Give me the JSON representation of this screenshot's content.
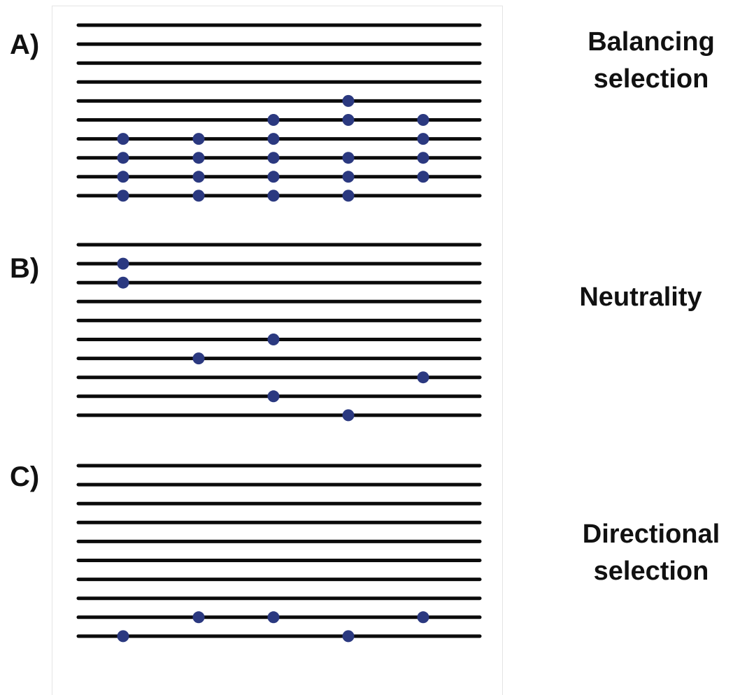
{
  "colors": {
    "line": "#0b0b0b",
    "dot": "#2b3980",
    "text": "#111111"
  },
  "panels": [
    {
      "id": "A",
      "letter": "A)",
      "title_lines": [
        "Balancing",
        "selection"
      ],
      "row_count": 10,
      "variant_columns": 5,
      "dots": [
        {
          "row": 5,
          "col": 4
        },
        {
          "row": 6,
          "col": 3
        },
        {
          "row": 6,
          "col": 4
        },
        {
          "row": 6,
          "col": 5
        },
        {
          "row": 7,
          "col": 1
        },
        {
          "row": 7,
          "col": 2
        },
        {
          "row": 7,
          "col": 3
        },
        {
          "row": 7,
          "col": 5
        },
        {
          "row": 8,
          "col": 1
        },
        {
          "row": 8,
          "col": 2
        },
        {
          "row": 8,
          "col": 3
        },
        {
          "row": 8,
          "col": 4
        },
        {
          "row": 8,
          "col": 5
        },
        {
          "row": 9,
          "col": 1
        },
        {
          "row": 9,
          "col": 2
        },
        {
          "row": 9,
          "col": 3
        },
        {
          "row": 9,
          "col": 4
        },
        {
          "row": 9,
          "col": 5
        },
        {
          "row": 10,
          "col": 1
        },
        {
          "row": 10,
          "col": 2
        },
        {
          "row": 10,
          "col": 3
        },
        {
          "row": 10,
          "col": 4
        }
      ]
    },
    {
      "id": "B",
      "letter": "B)",
      "title_lines": [
        "Neutrality"
      ],
      "row_count": 10,
      "variant_columns": 5,
      "dots": [
        {
          "row": 2,
          "col": 1
        },
        {
          "row": 3,
          "col": 1
        },
        {
          "row": 6,
          "col": 3
        },
        {
          "row": 7,
          "col": 2
        },
        {
          "row": 8,
          "col": 5
        },
        {
          "row": 9,
          "col": 3
        },
        {
          "row": 10,
          "col": 4
        }
      ]
    },
    {
      "id": "C",
      "letter": "C)",
      "title_lines": [
        "Directional",
        "selection"
      ],
      "row_count": 10,
      "variant_columns": 5,
      "dots": [
        {
          "row": 9,
          "col": 2
        },
        {
          "row": 9,
          "col": 3
        },
        {
          "row": 9,
          "col": 5
        },
        {
          "row": 10,
          "col": 1
        },
        {
          "row": 10,
          "col": 4
        }
      ]
    }
  ]
}
